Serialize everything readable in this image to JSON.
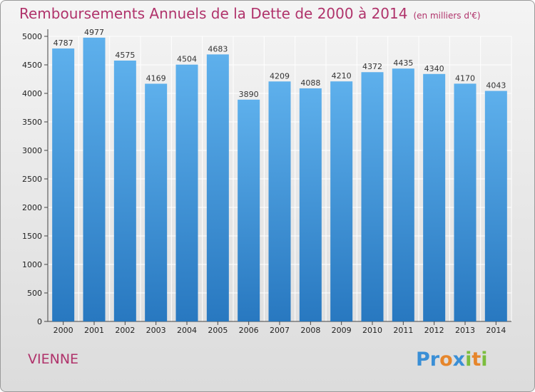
{
  "chart_data": {
    "type": "bar",
    "title": "Remboursements Annuels de la Dette de 2000 à 2014",
    "subtitle": "(en milliers d'€)",
    "categories": [
      "2000",
      "2001",
      "2002",
      "2003",
      "2004",
      "2005",
      "2006",
      "2007",
      "2008",
      "2009",
      "2010",
      "2011",
      "2012",
      "2013",
      "2014"
    ],
    "values": [
      4787,
      4977,
      4575,
      4169,
      4504,
      4683,
      3890,
      4209,
      4088,
      4210,
      4372,
      4435,
      4340,
      4170,
      4043
    ],
    "ylim": [
      0,
      5000
    ],
    "yticks": [
      0,
      500,
      1000,
      1500,
      2000,
      2500,
      3000,
      3500,
      4000,
      4500,
      5000
    ],
    "grid": true,
    "bar_color": "#3d8fd8",
    "grid_color": "#ffffff"
  },
  "footer": {
    "region": "VIENNE",
    "logo_parts": [
      "Pr",
      "o",
      "x",
      "i",
      "t",
      "i"
    ]
  },
  "colors": {
    "title": "#b0336b",
    "logo_blue": "#3a8fd6",
    "logo_orange": "#e6862c",
    "logo_green": "#7bbd3e"
  }
}
